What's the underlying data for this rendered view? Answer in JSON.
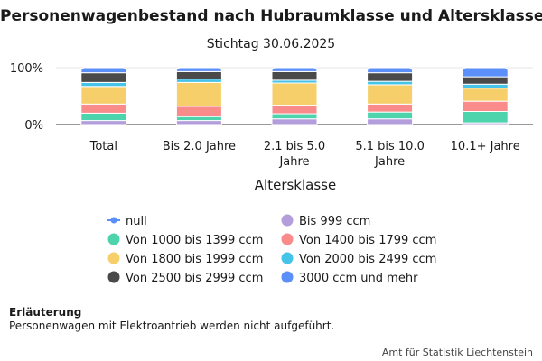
{
  "title": "Personenwagenbestand nach Hubraumklasse und Altersklasse",
  "subtitle": "Stichtag 30.06.2025",
  "note": {
    "title": "Erläuterung",
    "text": "Personenwagen mit Elektroantrieb werden nicht aufgeführt."
  },
  "source": "Amt für Statistik Liechtenstein",
  "chart_data": {
    "type": "bar",
    "stacked": true,
    "percent_scale": true,
    "title": "Personenwagenbestand nach Hubraumklasse und Altersklasse",
    "subtitle": "Stichtag 30.06.2025",
    "xlabel": "Altersklasse",
    "ylabel": "",
    "ylim": [
      0,
      100
    ],
    "yticks": [
      "0%",
      "100%"
    ],
    "legend_position": "bottom",
    "categories": [
      [
        "Total"
      ],
      [
        "Bis 2.0 Jahre"
      ],
      [
        "2.1 bis 5.0",
        "Jahre"
      ],
      [
        "5.1 bis 10.0",
        "Jahre"
      ],
      [
        "10.1+ Jahre"
      ]
    ],
    "series": [
      {
        "name": "null",
        "color": "#5b8ff9",
        "marker": "line",
        "values": [
          0,
          0,
          0,
          0,
          0
        ]
      },
      {
        "name": "Bis 999 ccm",
        "color": "#b39ddb",
        "values": [
          7,
          7,
          10,
          10,
          3
        ]
      },
      {
        "name": "Von 1000 bis 1399 ccm",
        "color": "#4dd4ac",
        "values": [
          13,
          7,
          9,
          12,
          20
        ]
      },
      {
        "name": "Von 1400 bis 1799 ccm",
        "color": "#f98b8b",
        "values": [
          16,
          18,
          15,
          14,
          18
        ]
      },
      {
        "name": "Von 1800 bis 1999 ccm",
        "color": "#f6cf6a",
        "values": [
          31,
          42,
          39,
          34,
          23
        ]
      },
      {
        "name": "Von 2000 bis 2499 ccm",
        "color": "#45c3e8",
        "values": [
          7,
          6,
          5,
          6,
          7
        ]
      },
      {
        "name": "Von 2500 bis 2999 ccm",
        "color": "#4a4a4a",
        "values": [
          17,
          13,
          15,
          15,
          13
        ]
      },
      {
        "name": "3000 ccm und mehr",
        "color": "#5b8ff9",
        "values": [
          9,
          7,
          7,
          9,
          16
        ]
      }
    ]
  }
}
